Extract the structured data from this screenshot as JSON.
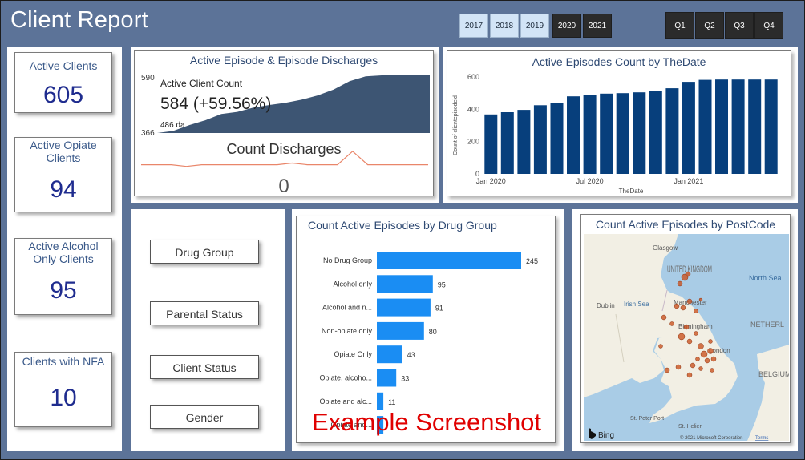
{
  "header": {
    "title": "Client Report"
  },
  "years": [
    {
      "label": "2017",
      "selected": true
    },
    {
      "label": "2018",
      "selected": true
    },
    {
      "label": "2019",
      "selected": true
    },
    {
      "label": "2020",
      "selected": false
    },
    {
      "label": "2021",
      "selected": false
    }
  ],
  "quarters": [
    "Q1",
    "Q2",
    "Q3",
    "Q4"
  ],
  "kpis": [
    {
      "label": "Active Clients",
      "value": "605"
    },
    {
      "label": "Active Opiate Clients",
      "value": "94"
    },
    {
      "label": "Active Alcohol Only Clients",
      "value": "95"
    },
    {
      "label": "Clients with NFA",
      "value": "10"
    }
  ],
  "episodes_panel": {
    "title": "Active Episode & Episode Discharges",
    "card_label": "Active Client Count",
    "card_value": "584  (+59.56%)",
    "card_sub": "486 da",
    "axis_top": "590",
    "axis_bottom": "366",
    "discharges_title": "Count Discharges",
    "discharges_value": "0",
    "colors": {
      "area": "#3d5573",
      "line": "#e9866a"
    }
  },
  "count_chart": {
    "title": "Active Episodes Count by TheDate",
    "colors": {
      "bar": "#073f7c"
    }
  },
  "drug_chart": {
    "title": "Count Active Episodes by Drug Group",
    "colors": {
      "bar": "#1a8df3"
    }
  },
  "slicers": [
    "Drug Group",
    "Parental Status",
    "Client Status",
    "Gender"
  ],
  "map": {
    "title": "Count Active Episodes by PostCode",
    "labels": {
      "glasgow": "Glasgow",
      "uk": "UNITED KINGDOM",
      "north_sea": "North Sea",
      "dublin": "Dublin",
      "irish_sea": "Irish Sea",
      "manchester": "Manchester",
      "birmingham": "Birmingham",
      "london": "London",
      "nether": "NETHERL",
      "belgium": "BELGIUM",
      "st_peter": "St. Peter Port",
      "st_helier": "St. Helier"
    },
    "attribution": "© 2021 Microsoft Corporation",
    "terms": "Terms",
    "bing": "Bing",
    "colors": {
      "land": "#f2efe4",
      "sea": "#a9cce6",
      "dot": "#c9501c"
    }
  },
  "watermark": "Example Screenshot",
  "chart_data": [
    {
      "type": "area",
      "title": "Active Client Count",
      "ylim": [
        366,
        590
      ],
      "series": [
        {
          "values": [
            366,
            366,
            374,
            396,
            414,
            438,
            446,
            462,
            472,
            480,
            492,
            508,
            530,
            562,
            580,
            584,
            584,
            584,
            584
          ]
        }
      ]
    },
    {
      "type": "line",
      "title": "Count Discharges",
      "series": [
        {
          "values": [
            2,
            2,
            2,
            1.5,
            2,
            2,
            2,
            2,
            2,
            2,
            2.5,
            2,
            2,
            2,
            6,
            2,
            2,
            2,
            2,
            2
          ]
        }
      ]
    },
    {
      "type": "bar",
      "title": "Active Episodes Count by TheDate",
      "xlabel": "TheDate",
      "ylabel": "Count of clientepisodeid",
      "ylim": [
        0,
        600
      ],
      "yticks": [
        "0",
        "200",
        "400",
        "600"
      ],
      "xticks": [
        {
          "label": "Jan 2020",
          "index": 0
        },
        {
          "label": "Jul 2020",
          "index": 6
        },
        {
          "label": "Jan 2021",
          "index": 12
        }
      ],
      "values": [
        368,
        382,
        396,
        425,
        440,
        480,
        490,
        497,
        500,
        505,
        511,
        530,
        570,
        582,
        584,
        584,
        584,
        584
      ]
    },
    {
      "type": "bar",
      "title": "Count Active Episodes by Drug Group",
      "categories": [
        "No Drug Group",
        "Alcohol only",
        "Alcohol and n...",
        "Non-opiate only",
        "Opiate Only",
        "Opiate, alcoho...",
        "Opiate and alc...",
        "Opiate and..."
      ],
      "values": [
        245,
        95,
        91,
        80,
        43,
        33,
        11,
        11
      ]
    }
  ]
}
